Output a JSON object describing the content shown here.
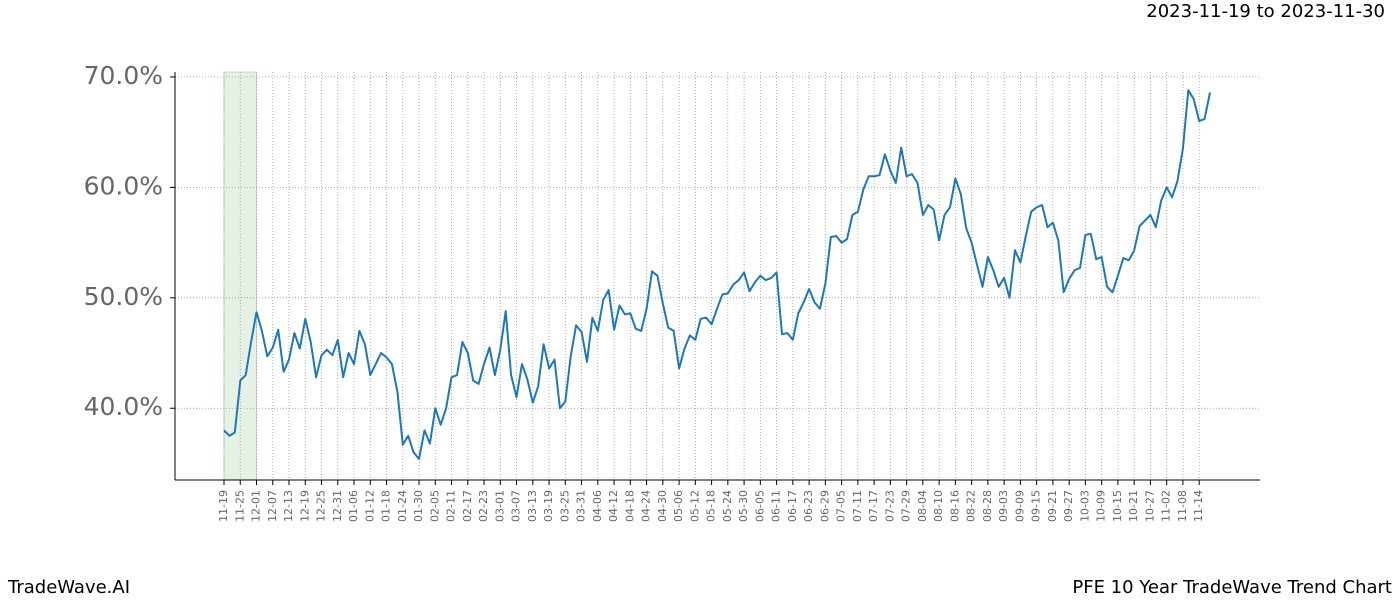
{
  "chart_data": {
    "type": "line",
    "title": "2023-11-19 to 2023-11-30",
    "footer_left": "TradeWave.AI",
    "footer_right": "PFE 10 Year TradeWave Trend Chart",
    "categories": [
      "11-19",
      null,
      null,
      "11-25",
      null,
      null,
      "12-01",
      null,
      null,
      "12-07",
      null,
      null,
      "12-13",
      null,
      null,
      "12-19",
      null,
      null,
      "12-25",
      null,
      null,
      "12-31",
      null,
      null,
      "01-06",
      null,
      null,
      "01-12",
      null,
      null,
      "01-18",
      null,
      null,
      "01-24",
      null,
      null,
      "01-30",
      null,
      null,
      "02-05",
      null,
      null,
      "02-11",
      null,
      null,
      "02-17",
      null,
      null,
      "02-23",
      null,
      null,
      "03-01",
      null,
      null,
      "03-07",
      null,
      null,
      "03-13",
      null,
      null,
      "03-19",
      null,
      null,
      "03-25",
      null,
      null,
      "03-31",
      null,
      null,
      "04-06",
      null,
      null,
      "04-12",
      null,
      null,
      "04-18",
      null,
      null,
      "04-24",
      null,
      null,
      "04-30",
      null,
      null,
      "05-06",
      null,
      null,
      "05-12",
      null,
      null,
      "05-18",
      null,
      null,
      "05-24",
      null,
      null,
      "05-30",
      null,
      null,
      "06-05",
      null,
      null,
      "06-11",
      null,
      null,
      "06-17",
      null,
      null,
      "06-23",
      null,
      null,
      "06-29",
      null,
      null,
      "07-05",
      null,
      null,
      "07-11",
      null,
      null,
      "07-17",
      null,
      null,
      "07-23",
      null,
      null,
      "07-29",
      null,
      null,
      "08-04",
      null,
      null,
      "08-10",
      null,
      null,
      "08-16",
      null,
      null,
      "08-22",
      null,
      null,
      "08-28",
      null,
      null,
      "09-03",
      null,
      null,
      "09-09",
      null,
      null,
      "09-15",
      null,
      null,
      "09-21",
      null,
      null,
      "09-27",
      null,
      null,
      "10-03",
      null,
      null,
      "10-09",
      null,
      null,
      "10-15",
      null,
      null,
      "10-21",
      null,
      null,
      "10-27",
      null,
      null,
      "11-02",
      null,
      null,
      "11-08",
      null,
      null,
      "11-14",
      null,
      null
    ],
    "series": [
      {
        "color": "#1f77b4",
        "values": [
          38.0,
          37.5,
          37.8,
          42.5,
          43,
          46,
          48.7,
          47,
          44.7,
          45.5,
          47.1,
          43.3,
          44.4,
          46.8,
          45.4,
          48.1,
          46,
          42.8,
          44.8,
          45.3,
          44.8,
          46.2,
          42.8,
          45,
          44,
          47,
          45.8,
          43,
          44,
          45,
          44.6,
          44,
          41.5,
          36.7,
          37.5,
          36,
          35.4,
          38,
          36.8,
          40,
          38.5,
          40,
          42.8,
          43,
          46,
          45,
          42.5,
          42.2,
          44,
          45.5,
          43,
          45.3,
          48.8,
          43,
          41,
          44,
          42.6,
          40.5,
          42,
          45.8,
          43.6,
          44.4,
          40,
          40.6,
          44.7,
          47.5,
          46.9,
          44.2,
          48.2,
          47,
          49.8,
          50.7,
          47.1,
          49.3,
          48.5,
          48.6,
          47.2,
          47,
          49,
          52.4,
          52,
          49.5,
          47.3,
          47,
          43.6,
          45.4,
          46.6,
          46.2,
          48.1,
          48.2,
          47.6,
          49,
          50.3,
          50.4,
          51.2,
          51.6,
          52.3,
          50.6,
          51.4,
          52,
          51.6,
          51.8,
          52.3,
          46.7,
          46.8,
          46.2,
          48.6,
          49.6,
          50.8,
          49.6,
          49,
          51.3,
          55.5,
          55.6,
          55,
          55.3,
          57.5,
          57.8,
          59.8,
          61,
          61,
          61.1,
          63,
          61.5,
          60.4,
          63.6,
          61,
          61.2,
          60.4,
          57.5,
          58.4,
          58,
          55.2,
          57.5,
          58.2,
          60.8,
          59.4,
          56.3,
          55,
          53,
          51,
          53.7,
          52.5,
          51,
          51.8,
          50,
          54.3,
          53.2,
          55.6,
          57.8,
          58.2,
          58.4,
          56.4,
          56.8,
          55.2,
          50.5,
          51.7,
          52.5,
          52.7,
          55.7,
          55.8,
          53.5,
          53.7,
          51,
          50.5,
          52,
          53.6,
          53.4,
          54.3,
          56.5,
          57,
          57.5,
          56.4,
          58.8,
          60,
          59.1,
          60.6,
          63.5,
          68.8,
          68,
          66,
          66.2,
          68.6
        ]
      }
    ],
    "ylim": [
      33.5,
      70.45
    ],
    "yticks": [
      {
        "value": 40,
        "label": "40.0%"
      },
      {
        "value": 50,
        "label": "50.0%"
      },
      {
        "value": 60,
        "label": "60.0%"
      },
      {
        "value": 70,
        "label": "70.0%"
      }
    ],
    "highlight": [
      0,
      6
    ],
    "highlight_color": "#d5e8d4",
    "grid": true
  }
}
